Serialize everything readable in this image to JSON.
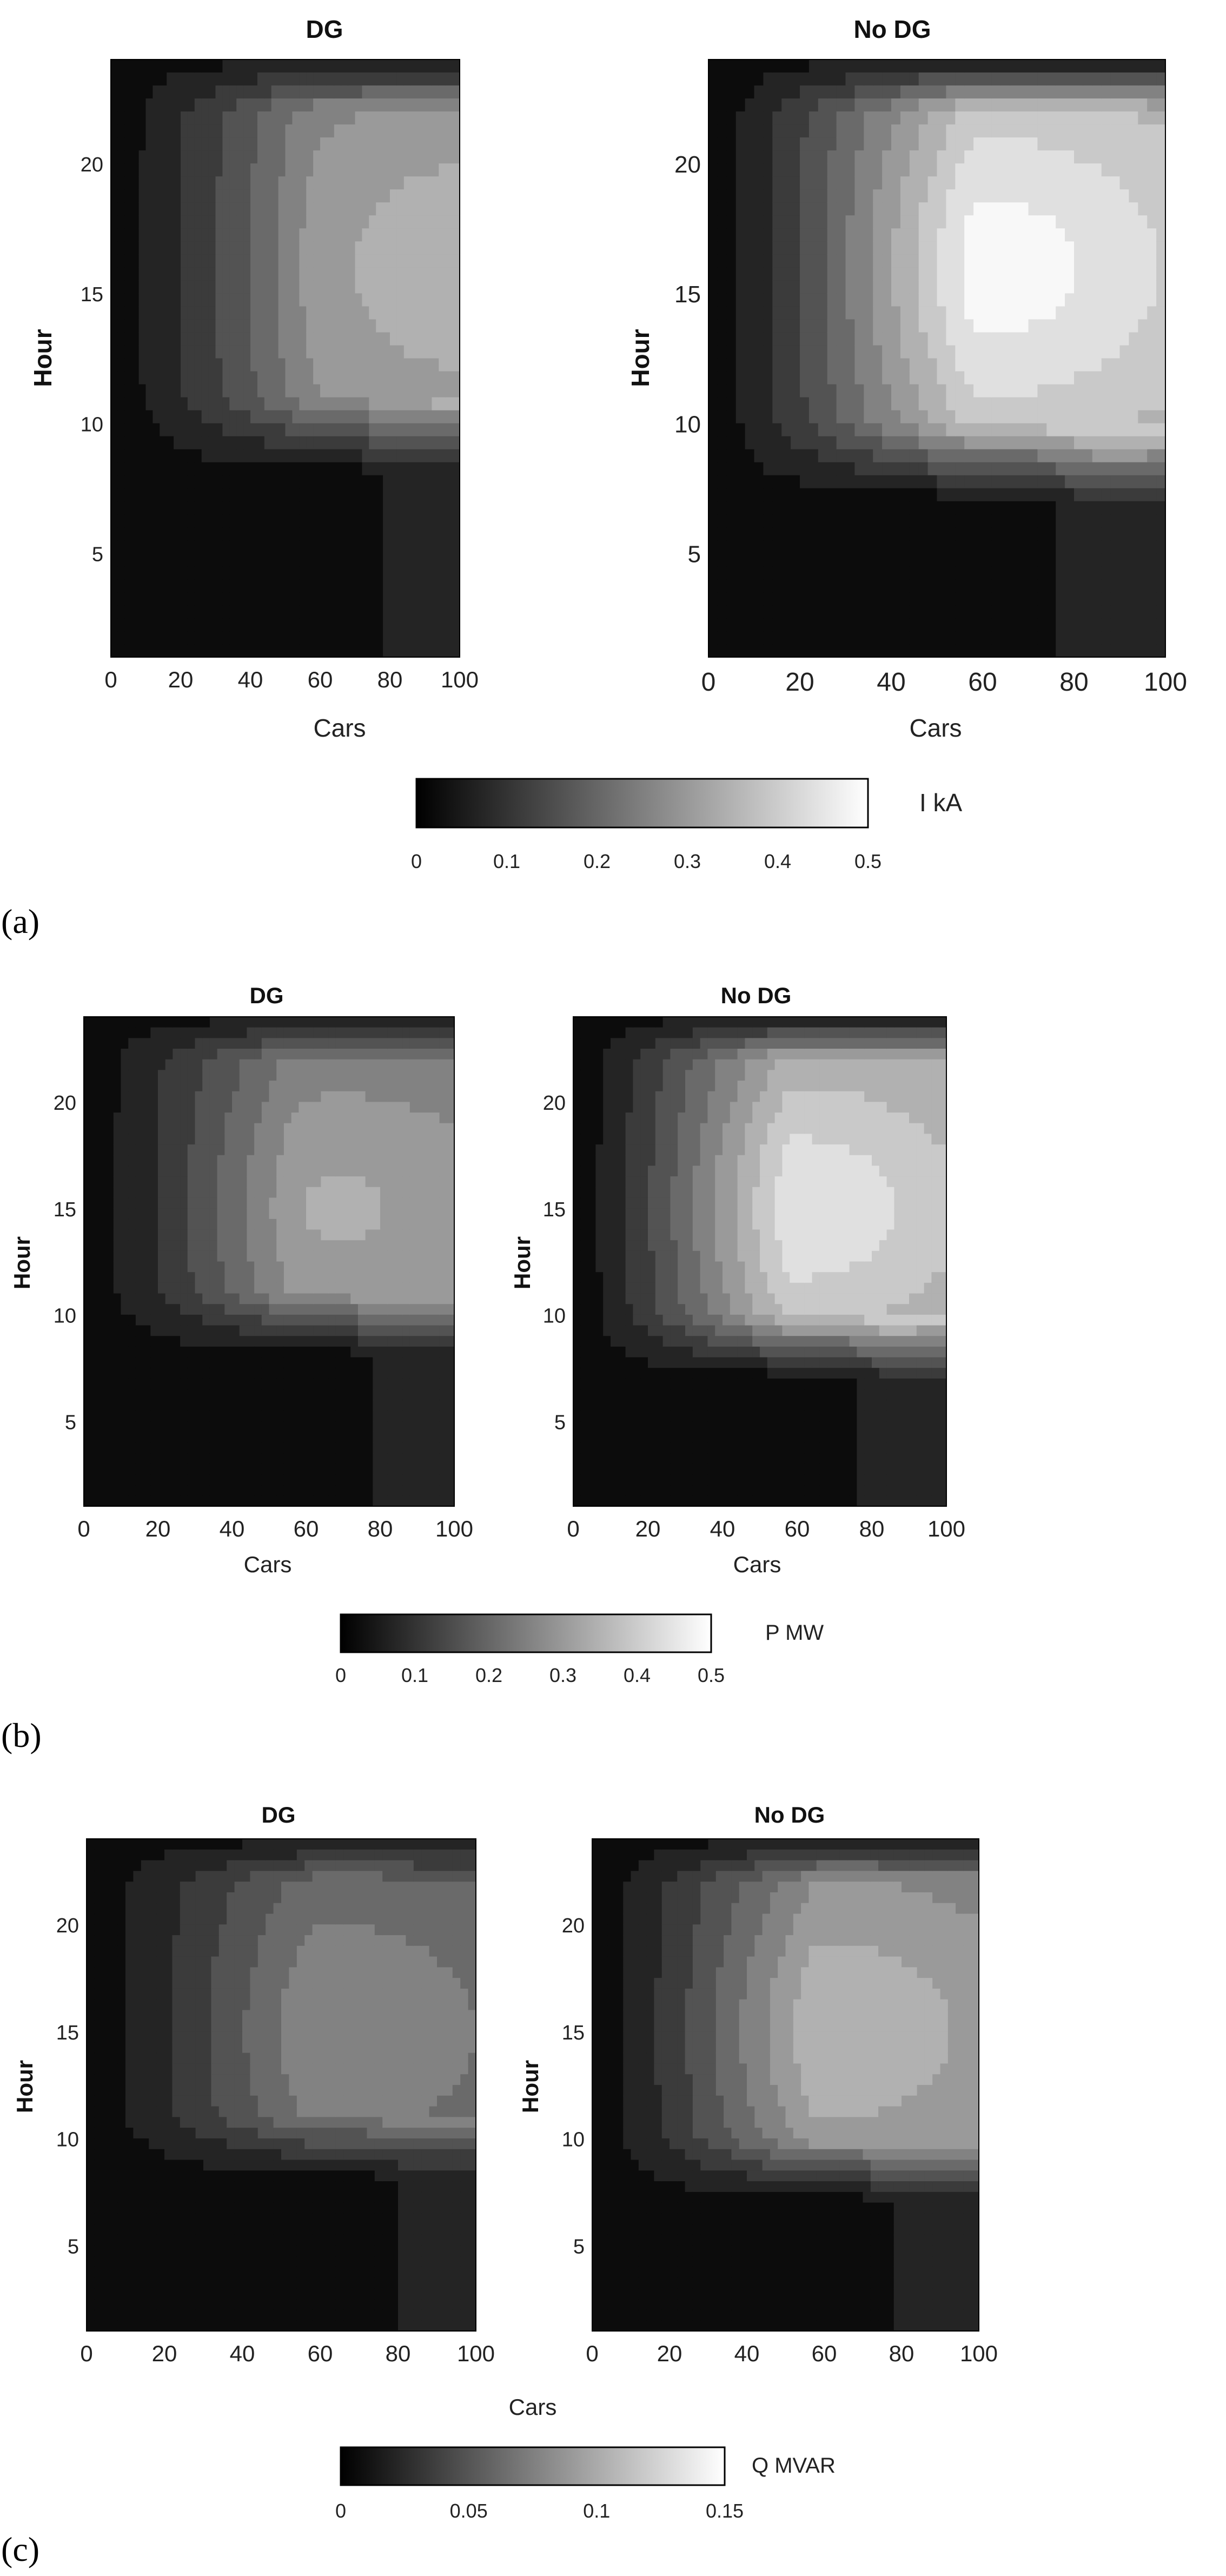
{
  "figure": {
    "panel_labels": [
      "(a)",
      "(b)",
      "(c)"
    ]
  },
  "chart_data": [
    {
      "type": "heatmap",
      "title": "DG",
      "xlabel": "Cars",
      "ylabel": "Hour",
      "xticks": [
        0,
        20,
        40,
        60,
        80,
        100
      ],
      "yticks": [
        5,
        10,
        15,
        20
      ],
      "xlim": [
        0,
        100
      ],
      "ylim": [
        1,
        24
      ],
      "colorbar_label": "I kA",
      "colorbar_ticks": [
        "0",
        "0.1",
        "0.2",
        "0.3",
        "0.4",
        "0.5"
      ],
      "zlim": [
        0,
        0.5
      ],
      "peak": 0.36,
      "peak_hour": 16,
      "peak_cars": 100,
      "ridge_hours": [
        11,
        22
      ],
      "grid": false
    },
    {
      "type": "heatmap",
      "title": "No DG",
      "xlabel": "Cars",
      "ylabel": "Hour",
      "xticks": [
        0,
        20,
        40,
        60,
        80,
        100
      ],
      "yticks": [
        5,
        10,
        15,
        20
      ],
      "xlim": [
        0,
        100
      ],
      "ylim": [
        1,
        24
      ],
      "colorbar_label": "I kA",
      "colorbar_ticks": [
        "0",
        "0.1",
        "0.2",
        "0.3",
        "0.4",
        "0.5"
      ],
      "zlim": [
        0,
        0.5
      ],
      "peak": 0.5,
      "peak_hour": 16,
      "peak_cars": 60,
      "ridge_hours": [
        10,
        22
      ],
      "grid": false
    },
    {
      "type": "heatmap",
      "title": "DG",
      "xlabel": "Cars",
      "ylabel": "Hour",
      "xticks": [
        0,
        20,
        40,
        60,
        80,
        100
      ],
      "yticks": [
        5,
        10,
        15,
        20
      ],
      "xlim": [
        0,
        100
      ],
      "ylim": [
        1,
        24
      ],
      "colorbar_label": "P MW",
      "colorbar_ticks": [
        "0",
        "0.1",
        "0.2",
        "0.3",
        "0.4",
        "0.5"
      ],
      "zlim": [
        0,
        0.5
      ],
      "peak": 0.33,
      "peak_hour": 15,
      "peak_cars": 70,
      "ridge_hours": [
        11,
        22
      ],
      "grid": false
    },
    {
      "type": "heatmap",
      "title": "No DG",
      "xlabel": "Cars",
      "ylabel": "Hour",
      "xticks": [
        0,
        20,
        40,
        60,
        80,
        100
      ],
      "yticks": [
        5,
        10,
        15,
        20
      ],
      "xlim": [
        0,
        100
      ],
      "ylim": [
        1,
        24
      ],
      "colorbar_label": "P MW",
      "colorbar_ticks": [
        "0",
        "0.1",
        "0.2",
        "0.3",
        "0.4",
        "0.5"
      ],
      "zlim": [
        0,
        0.5
      ],
      "peak": 0.46,
      "peak_hour": 15,
      "peak_cars": 60,
      "ridge_hours": [
        10,
        22
      ],
      "grid": false
    },
    {
      "type": "heatmap",
      "title": "DG",
      "xlabel": "Cars",
      "ylabel": "Hour",
      "xticks": [
        0,
        20,
        40,
        60,
        80,
        100
      ],
      "yticks": [
        5,
        10,
        15,
        20
      ],
      "xlim": [
        0,
        100
      ],
      "ylim": [
        1,
        24
      ],
      "colorbar_label": "Q MVAR",
      "colorbar_ticks": [
        "0",
        "0.05",
        "0.1",
        "0.15"
      ],
      "zlim": [
        0,
        0.15
      ],
      "peak": 0.08,
      "peak_hour": 15,
      "peak_cars": 60,
      "ridge_hours": [
        11,
        22
      ],
      "grid": false
    },
    {
      "type": "heatmap",
      "title": "No DG",
      "xlabel": "Cars",
      "ylabel": "Hour",
      "xticks": [
        0,
        20,
        40,
        60,
        80,
        100
      ],
      "yticks": [
        5,
        10,
        15,
        20
      ],
      "xlim": [
        0,
        100
      ],
      "ylim": [
        1,
        24
      ],
      "colorbar_label": "Q MVAR",
      "colorbar_ticks": [
        "0",
        "0.05",
        "0.1",
        "0.15"
      ],
      "zlim": [
        0,
        0.15
      ],
      "peak": 0.11,
      "peak_hour": 15,
      "peak_cars": 60,
      "ridge_hours": [
        10,
        22
      ],
      "grid": false
    }
  ]
}
